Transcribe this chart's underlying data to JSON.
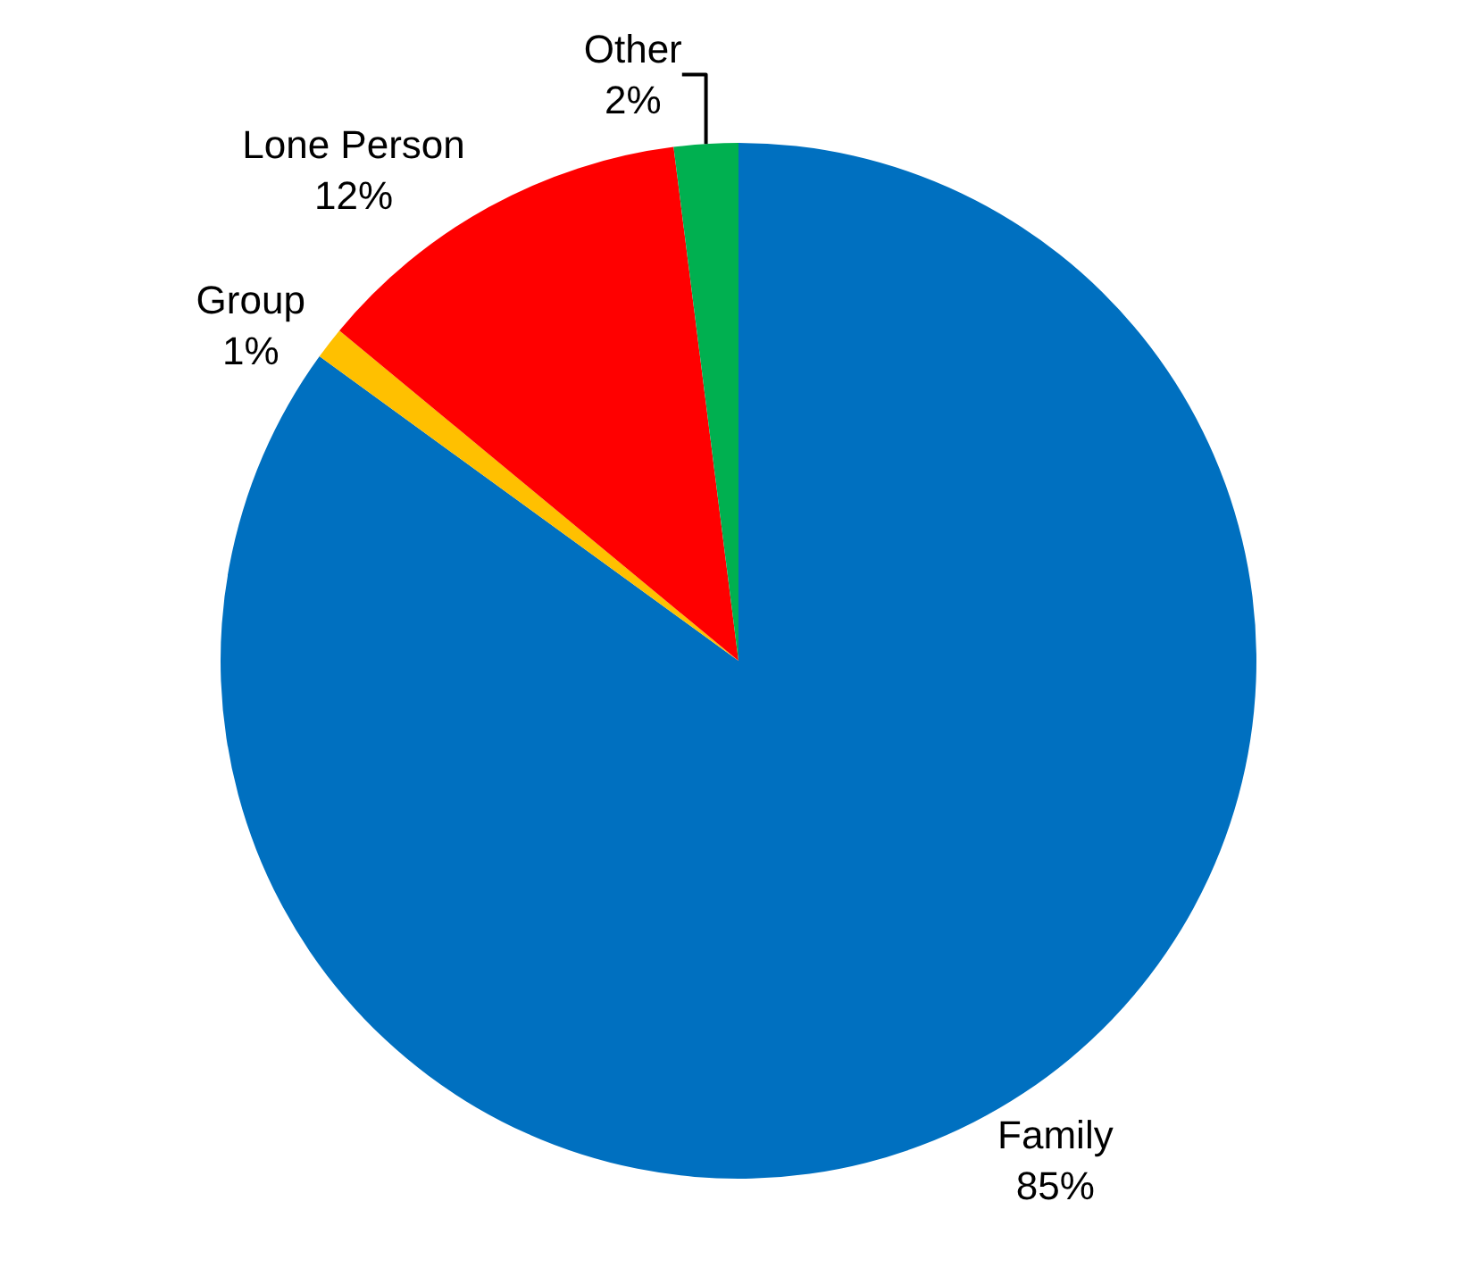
{
  "chart_data": {
    "type": "pie",
    "categories": [
      "Family",
      "Group",
      "Lone Person",
      "Other"
    ],
    "values": [
      85,
      1,
      12,
      2
    ],
    "colors": [
      "#0070c0",
      "#ffc000",
      "#ff0000",
      "#00b050"
    ],
    "value_labels": [
      "85%",
      "1%",
      "12%",
      "2%"
    ],
    "legend": false
  }
}
